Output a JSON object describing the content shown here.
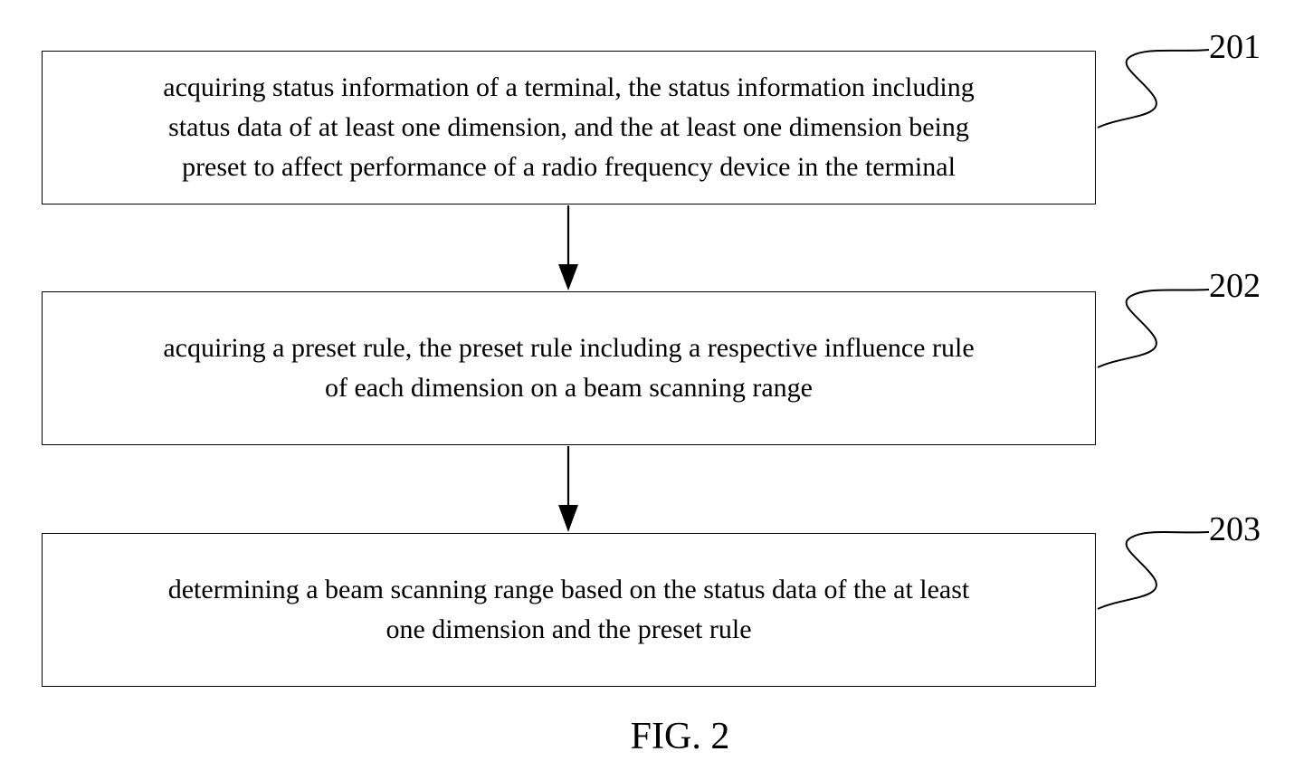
{
  "steps": [
    {
      "ref": "201",
      "lines": [
        "acquiring status information of a terminal, the status information including",
        "status data of at least one dimension, and the at least one dimension being",
        "preset to affect performance of a radio frequency device in the terminal"
      ]
    },
    {
      "ref": "202",
      "lines": [
        "acquiring a preset rule, the preset rule including a respective influence rule",
        "of each dimension on a beam scanning range"
      ]
    },
    {
      "ref": "203",
      "lines": [
        "determining a beam scanning range based on the status data of the at least",
        "one dimension and the preset rule"
      ]
    }
  ],
  "caption": "FIG. 2"
}
